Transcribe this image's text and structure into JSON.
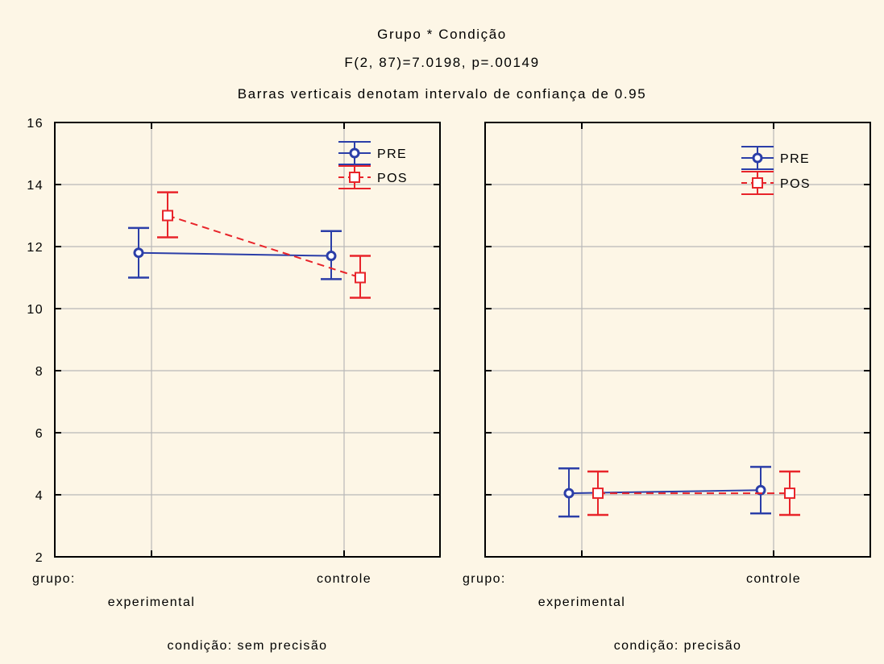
{
  "chart_data": {
    "type": "line",
    "title": "Grupo * Condição",
    "subtitle": "F(2, 87)=7.0198, p=.00149",
    "note": "Barras verticais denotam intervalo de confiança de 0.95",
    "ylim": [
      2,
      16
    ],
    "yticks": [
      "2",
      "4",
      "6",
      "8",
      "10",
      "12",
      "14",
      "16"
    ],
    "grid": true,
    "legend_placement": "top-right",
    "group_axis_label": "grupo:",
    "categories": [
      "experimental",
      "controle"
    ],
    "colors": {
      "PRE": "#2b3ea8",
      "POS": "#e8242a",
      "grid": "#b8b8b8"
    },
    "panels": [
      {
        "label": "condição: sem precisão",
        "series": [
          {
            "name": "PRE",
            "values": [
              11.8,
              11.7
            ],
            "ci_low": [
              11.0,
              10.95
            ],
            "ci_high": [
              12.6,
              12.5
            ]
          },
          {
            "name": "POS",
            "values": [
              13.0,
              11.0
            ],
            "ci_low": [
              12.3,
              10.35
            ],
            "ci_high": [
              13.75,
              11.7
            ]
          }
        ]
      },
      {
        "label": "condição: precisão",
        "series": [
          {
            "name": "PRE",
            "values": [
              4.05,
              4.15
            ],
            "ci_low": [
              3.3,
              3.4
            ],
            "ci_high": [
              4.85,
              4.9
            ]
          },
          {
            "name": "POS",
            "values": [
              4.05,
              4.05
            ],
            "ci_low": [
              3.35,
              3.35
            ],
            "ci_high": [
              4.75,
              4.75
            ]
          }
        ]
      }
    ]
  }
}
